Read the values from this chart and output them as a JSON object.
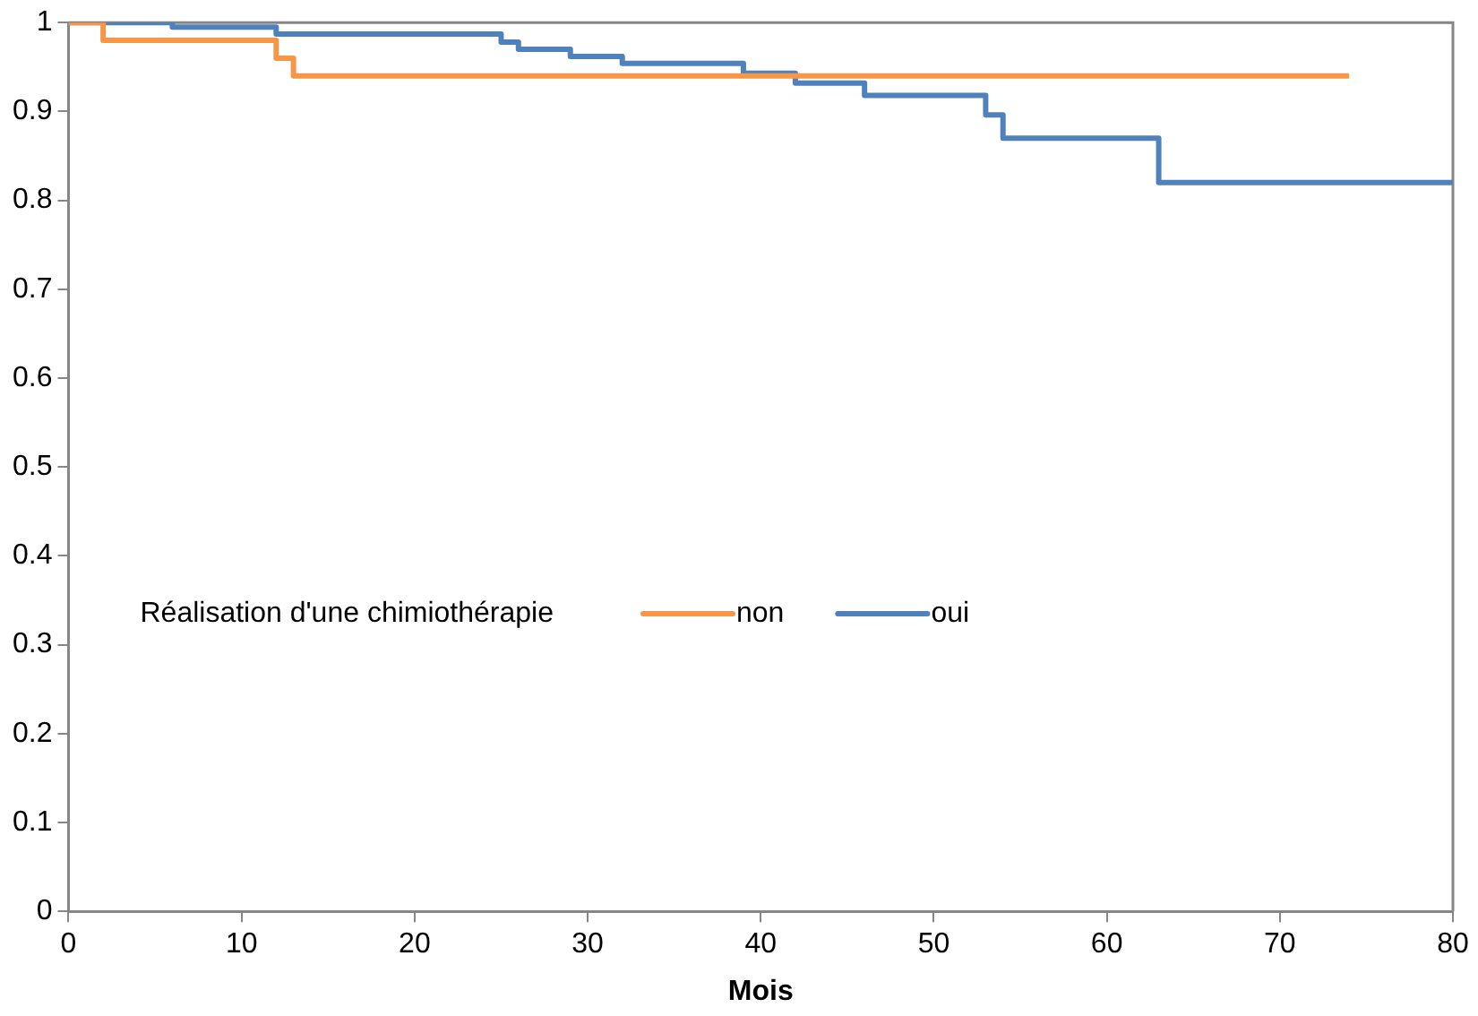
{
  "chart_data": {
    "type": "step",
    "xlabel": "Mois",
    "legend_title": "Réalisation d'une chimiothérapie",
    "legend": "center",
    "grid": false,
    "xlim": [
      0,
      80
    ],
    "xticks": [
      0,
      10,
      20,
      30,
      40,
      50,
      60,
      70,
      80
    ],
    "ylim": [
      0,
      1
    ],
    "yticks": [
      0,
      0.1,
      0.2,
      0.3,
      0.4,
      0.5,
      0.6,
      0.7,
      0.8,
      0.9,
      1
    ],
    "series": [
      {
        "name": "non",
        "color": "#f79646",
        "x": [
          0,
          2,
          12,
          13,
          74
        ],
        "values": [
          1,
          0.98,
          0.96,
          0.94,
          0.94
        ]
      },
      {
        "name": "oui",
        "color": "#4f81bd",
        "x": [
          0,
          6,
          12,
          25,
          26,
          29,
          32,
          39,
          42,
          46,
          53,
          54,
          63,
          80
        ],
        "values": [
          1,
          0.995,
          0.987,
          0.978,
          0.97,
          0.962,
          0.954,
          0.943,
          0.932,
          0.918,
          0.896,
          0.87,
          0.82,
          0.82
        ]
      }
    ]
  }
}
